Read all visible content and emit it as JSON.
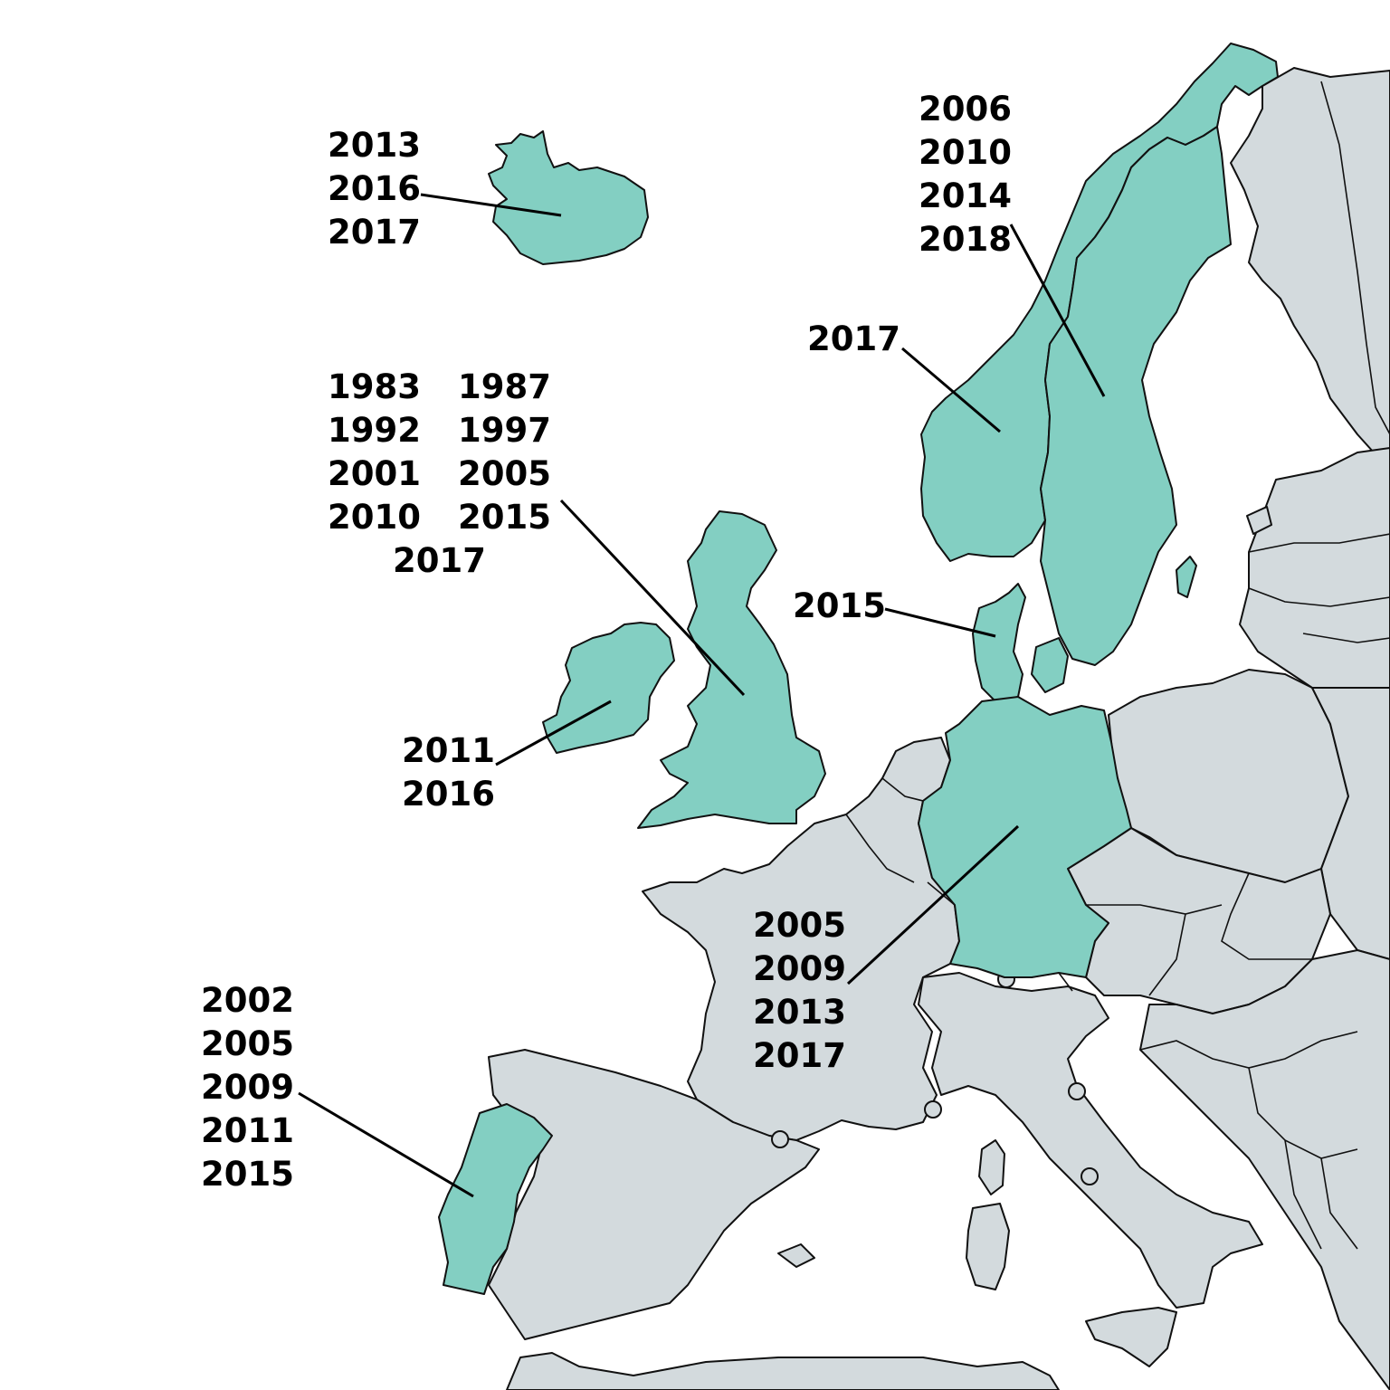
{
  "colors": {
    "highlight": "#83cfc2",
    "land": "#d3dadd",
    "outline": "#111111"
  },
  "countries": [
    {
      "id": "iceland",
      "years": [
        "2013",
        "2016",
        "2017"
      ]
    },
    {
      "id": "united-kingdom",
      "years": [
        "1983",
        "1987",
        "1992",
        "1997",
        "2001",
        "2005",
        "2010",
        "2015",
        "2017"
      ]
    },
    {
      "id": "ireland",
      "years": [
        "2011",
        "2016"
      ]
    },
    {
      "id": "norway",
      "years": [
        "2017"
      ]
    },
    {
      "id": "sweden",
      "years": [
        "2006",
        "2010",
        "2014",
        "2018"
      ]
    },
    {
      "id": "denmark",
      "years": [
        "2015"
      ]
    },
    {
      "id": "germany",
      "years": [
        "2005",
        "2009",
        "2013",
        "2017"
      ]
    },
    {
      "id": "portugal",
      "years": [
        "2002",
        "2005",
        "2009",
        "2011",
        "2015"
      ]
    }
  ]
}
